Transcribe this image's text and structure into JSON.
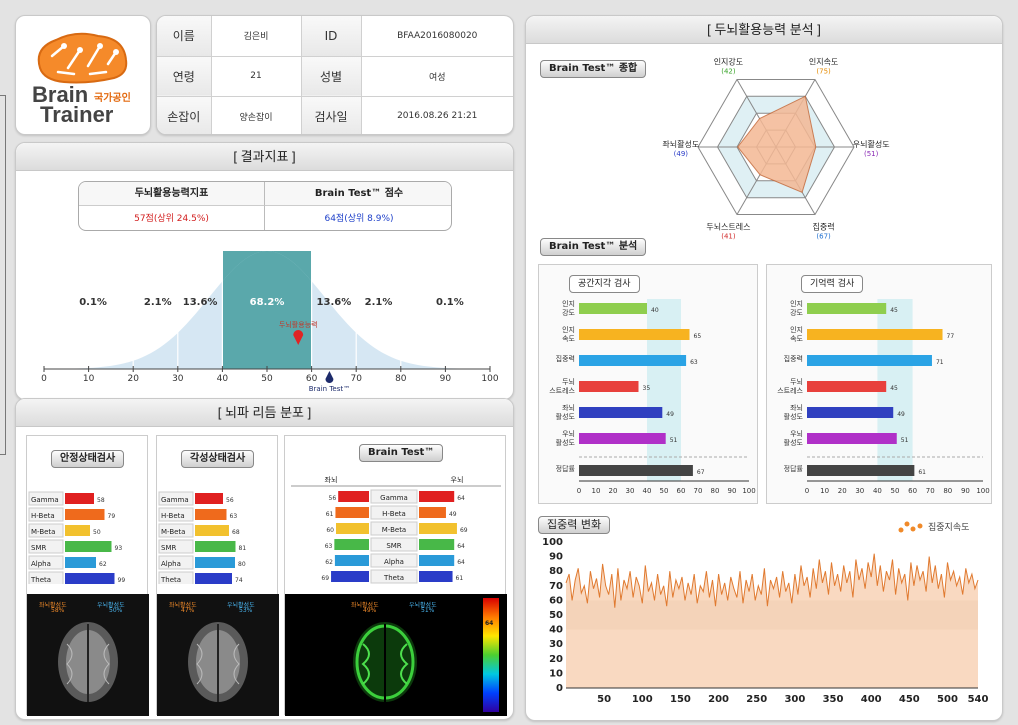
{
  "logo": {
    "brand_line1": "Brain",
    "brand_line2": "Trainer",
    "badge": "국가공인"
  },
  "info": {
    "rows": [
      {
        "l1": "이름",
        "v1": "김은비",
        "l2": "ID",
        "v2": "BFAA2016080020"
      },
      {
        "l1": "연령",
        "v1": "21",
        "l2": "성별",
        "v2": "여성"
      },
      {
        "l1": "손잡이",
        "v1": "양손잡이",
        "l2": "검사일",
        "v2": "2016.08.26 21:21"
      }
    ]
  },
  "result": {
    "title": "[ 결과지표 ]",
    "col1": "두뇌활용능력지표",
    "col2": "Brain Test™ 점수",
    "val1": "57점(상위 24.5%)",
    "val2": "64점(상위 8.9%)",
    "percents": [
      "0.1%",
      "2.1%",
      "13.6%",
      "68.2%",
      "13.6%",
      "2.1%",
      "0.1%"
    ],
    "axis": [
      "0",
      "10",
      "20",
      "30",
      "40",
      "50",
      "60",
      "70",
      "80",
      "90",
      "100"
    ],
    "marker1_label": "두뇌활용능력",
    "marker1_value": 57,
    "marker2_label": "Brain Test™",
    "marker2_value": 64
  },
  "wave": {
    "title": "[ 뇌파 리듬 분포 ]",
    "rest": {
      "title": "안정상태검사",
      "rows": [
        {
          "n": "Gamma",
          "v": "58",
          "c": "#e02020"
        },
        {
          "n": "H-Beta",
          "v": "79",
          "c": "#ef6a1c"
        },
        {
          "n": "M-Beta",
          "v": "50",
          "c": "#f2c12e"
        },
        {
          "n": "SMR",
          "v": "93",
          "c": "#48b848"
        },
        {
          "n": "Alpha",
          "v": "62",
          "c": "#2a9ad8"
        },
        {
          "n": "Theta",
          "v": "99",
          "c": "#2a3cc8"
        }
      ],
      "left": "좌뇌활성도",
      "left_v": "58%",
      "right": "우뇌활성도",
      "right_v": "50%"
    },
    "awake": {
      "title": "각성상태검사",
      "rows": [
        {
          "n": "Gamma",
          "v": "56",
          "c": "#e02020"
        },
        {
          "n": "H-Beta",
          "v": "63",
          "c": "#ef6a1c"
        },
        {
          "n": "M-Beta",
          "v": "68",
          "c": "#f2c12e"
        },
        {
          "n": "SMR",
          "v": "81",
          "c": "#48b848"
        },
        {
          "n": "Alpha",
          "v": "80",
          "c": "#2a9ad8"
        },
        {
          "n": "Theta",
          "v": "74",
          "c": "#2a3cc8"
        }
      ],
      "left": "좌뇌활성도",
      "left_v": "47%",
      "right": "우뇌활성도",
      "right_v": "53%"
    },
    "bt": {
      "title": "Brain Test™",
      "left_h": "좌뇌",
      "right_h": "우뇌",
      "rows": [
        {
          "n": "Gamma",
          "l": "56",
          "r": "64"
        },
        {
          "n": "H-Beta",
          "l": "61",
          "r": "49"
        },
        {
          "n": "M-Beta",
          "l": "60",
          "r": "69"
        },
        {
          "n": "SMR",
          "l": "63",
          "r": "64"
        },
        {
          "n": "Alpha",
          "l": "62",
          "r": "64"
        },
        {
          "n": "Theta",
          "l": "69",
          "r": "61"
        }
      ],
      "left": "좌뇌활성도",
      "left_v": "49%",
      "right": "우뇌활성도",
      "right_v": "51%",
      "scale_top": "64"
    }
  },
  "analysis": {
    "title": "[ 두뇌활용능력 분석 ]",
    "summary_pill": "Brain Test™ 종합",
    "analysis_pill": "Brain Test™ 분석",
    "radar": [
      {
        "name": "인지강도",
        "v": 42,
        "c": "#3aa52b"
      },
      {
        "name": "인지속도",
        "v": 75,
        "c": "#e58a00"
      },
      {
        "name": "우뇌활성도",
        "v": 51,
        "c": "#8a2ab5"
      },
      {
        "name": "집중력",
        "v": 67,
        "c": "#1e6fd0"
      },
      {
        "name": "두뇌스트레스",
        "v": 41,
        "c": "#d22c2c"
      },
      {
        "name": "좌뇌활성도",
        "v": 49,
        "c": "#2a3cc8"
      }
    ],
    "spatial": {
      "title": "공간지각 검사",
      "rows": [
        {
          "n": "인지\n강도",
          "v": 40,
          "c": "#8fce4e"
        },
        {
          "n": "인지\n속도",
          "v": 65,
          "c": "#f7b320"
        },
        {
          "n": "집중력",
          "v": 63,
          "c": "#2aa3e5"
        },
        {
          "n": "두뇌\n스트레스",
          "v": 35,
          "c": "#e8403c"
        },
        {
          "n": "좌뇌\n활성도",
          "v": 49,
          "c": "#3040c0"
        },
        {
          "n": "우뇌\n활성도",
          "v": 51,
          "c": "#b030c8"
        },
        {
          "n": "정답률",
          "v": 67,
          "c": "#444444"
        }
      ]
    },
    "memory": {
      "title": "기억력 검사",
      "rows": [
        {
          "n": "인지\n강도",
          "v": 45,
          "c": "#8fce4e"
        },
        {
          "n": "인지\n속도",
          "v": 77,
          "c": "#f7b320"
        },
        {
          "n": "집중력",
          "v": 71,
          "c": "#2aa3e5"
        },
        {
          "n": "두뇌\n스트레스",
          "v": 45,
          "c": "#e8403c"
        },
        {
          "n": "좌뇌\n활성도",
          "v": 49,
          "c": "#3040c0"
        },
        {
          "n": "우뇌\n활성도",
          "v": 51,
          "c": "#b030c8"
        },
        {
          "n": "정답률",
          "v": 61,
          "c": "#444444"
        }
      ]
    },
    "bar_ticks": [
      "0",
      "10",
      "20",
      "30",
      "40",
      "50",
      "60",
      "70",
      "80",
      "90",
      "100"
    ],
    "focus": {
      "title": "집중력 변화",
      "legend": "집중지속도",
      "y_ticks": [
        "100",
        "90",
        "80",
        "70",
        "60",
        "50",
        "40",
        "30",
        "20",
        "10",
        "0"
      ],
      "x_ticks": [
        "50",
        "100",
        "150",
        "200",
        "250",
        "300",
        "350",
        "400",
        "450",
        "500",
        "540"
      ]
    }
  },
  "chart_data": {
    "type": "line",
    "title": "집중력 변화",
    "series": [
      {
        "name": "집중지속도",
        "values": [
          72,
          78,
          60,
          74,
          82,
          65,
          70,
          58,
          80,
          68,
          75,
          62,
          85,
          70,
          64,
          78,
          55,
          82,
          60,
          74,
          68,
          80,
          62,
          76,
          70,
          58,
          84,
          66,
          72,
          60,
          78,
          64,
          70,
          56,
          80,
          62,
          74,
          68,
          76,
          60,
          72,
          64,
          78,
          58,
          70,
          66,
          80,
          62,
          74,
          56,
          78,
          64,
          72,
          60,
          76,
          68,
          62,
          80,
          58,
          74,
          66,
          78,
          60,
          70,
          64,
          82,
          56,
          74,
          68,
          76,
          62,
          80,
          66,
          72,
          58,
          78,
          64,
          84,
          70,
          76,
          62,
          82,
          68,
          88,
          72,
          80,
          64,
          86,
          70,
          78,
          66,
          84,
          72,
          80,
          62,
          88,
          74,
          82,
          68,
          86,
          76,
          92,
          70,
          84,
          66,
          80,
          74,
          88,
          64,
          82,
          72,
          78,
          60,
          86,
          70,
          84,
          74,
          80,
          66,
          90,
          72,
          84,
          68,
          78,
          62,
          86,
          74,
          80,
          70,
          76,
          64,
          82,
          72,
          78,
          68,
          74
        ]
      }
    ],
    "ylim": [
      0,
      100
    ],
    "xlim": [
      0,
      540
    ]
  }
}
